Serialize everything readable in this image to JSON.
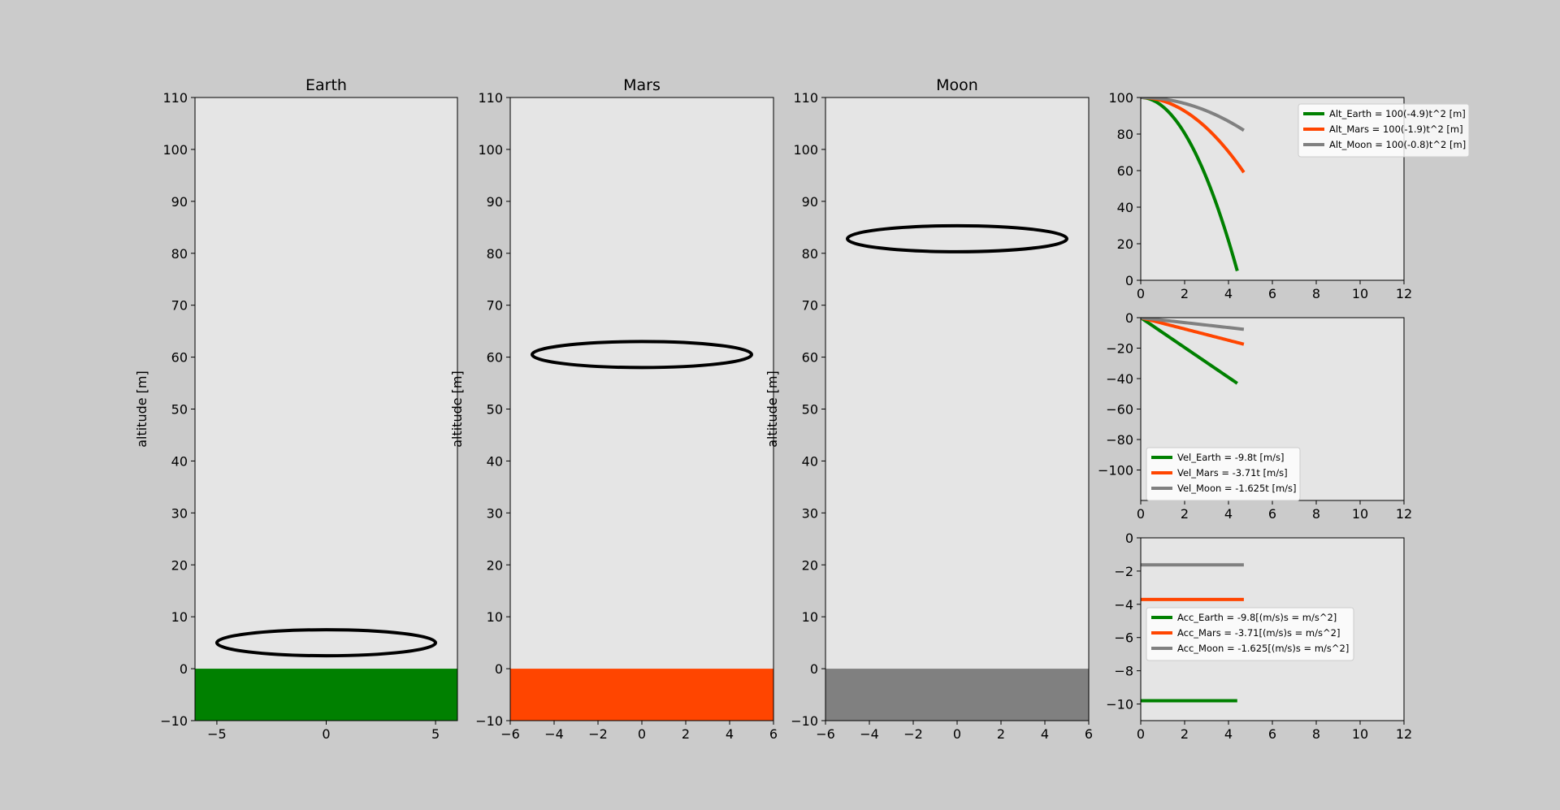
{
  "figure": {
    "background": "#cbcbcb",
    "axes_background": "#e5e5e5"
  },
  "chart_data": [
    {
      "type": "area",
      "title": "Earth",
      "xlabel": "",
      "ylabel": "altitude [m]",
      "xlim": [
        -6,
        6
      ],
      "ylim": [
        -10,
        110
      ],
      "xticks": [
        -5,
        0,
        5
      ],
      "yticks": [
        -10,
        0,
        10,
        20,
        30,
        40,
        50,
        60,
        70,
        80,
        90,
        100,
        110
      ],
      "grid": false,
      "ground": {
        "from": -10,
        "to": 0,
        "color": "#008000"
      },
      "ellipse": {
        "center": [
          0,
          5
        ],
        "width": 10,
        "height": 10,
        "color": "#000000"
      }
    },
    {
      "type": "area",
      "title": "Mars",
      "xlabel": "",
      "ylabel": "altitude [m]",
      "xlim": [
        -6,
        6
      ],
      "ylim": [
        -10,
        110
      ],
      "xticks": [
        -6,
        -4,
        -2,
        0,
        2,
        4,
        6
      ],
      "yticks": [
        -10,
        0,
        10,
        20,
        30,
        40,
        50,
        60,
        70,
        80,
        90,
        100,
        110
      ],
      "grid": false,
      "ground": {
        "from": -10,
        "to": 0,
        "color": "#ff4500"
      },
      "ellipse": {
        "center": [
          0,
          60.5
        ],
        "width": 10,
        "height": 10,
        "color": "#000000"
      }
    },
    {
      "type": "area",
      "title": "Moon",
      "xlabel": "",
      "ylabel": "altitude [m]",
      "xlim": [
        -6,
        6
      ],
      "ylim": [
        -10,
        110
      ],
      "xticks": [
        -6,
        -4,
        -2,
        0,
        2,
        4,
        6
      ],
      "yticks": [
        -10,
        0,
        10,
        20,
        30,
        40,
        50,
        60,
        70,
        80,
        90,
        100,
        110
      ],
      "grid": false,
      "ground": {
        "from": -10,
        "to": 0,
        "color": "#808080"
      },
      "ellipse": {
        "center": [
          0,
          82.8
        ],
        "width": 10,
        "height": 10,
        "color": "#000000"
      }
    },
    {
      "type": "line",
      "title": "",
      "xlim": [
        0,
        12
      ],
      "ylim": [
        0,
        100
      ],
      "xticks": [
        0,
        2,
        4,
        6,
        8,
        10,
        12
      ],
      "yticks": [
        0,
        20,
        40,
        60,
        80,
        100
      ],
      "grid": false,
      "legend": "top-right",
      "series": [
        {
          "name": "Alt_Earth = 100(-4.9)t^2 [m]",
          "color": "#008000",
          "t_end": 4.4,
          "coef": 4.9,
          "kind": "altitude"
        },
        {
          "name": "Alt_Mars = 100(-1.9)t^2 [m]",
          "color": "#ff4500",
          "t_end": 4.7,
          "coef": 1.855,
          "kind": "altitude"
        },
        {
          "name": "Alt_Moon = 100(-0.8)t^2 [m]",
          "color": "#808080",
          "t_end": 4.7,
          "coef": 0.8125,
          "kind": "altitude"
        }
      ]
    },
    {
      "type": "line",
      "title": "",
      "xlim": [
        0,
        12
      ],
      "ylim": [
        -120,
        0
      ],
      "xticks": [
        0,
        2,
        4,
        6,
        8,
        10,
        12
      ],
      "yticks": [
        -100,
        -80,
        -60,
        -40,
        -20,
        0
      ],
      "grid": false,
      "legend": "lower-left",
      "series": [
        {
          "name": "Vel_Earth = -9.8t [m/s]",
          "color": "#008000",
          "t_end": 4.4,
          "coef": 9.8,
          "kind": "velocity"
        },
        {
          "name": "Vel_Mars = -3.71t [m/s]",
          "color": "#ff4500",
          "t_end": 4.7,
          "coef": 3.71,
          "kind": "velocity"
        },
        {
          "name": "Vel_Moon = -1.625t [m/s]",
          "color": "#808080",
          "t_end": 4.7,
          "coef": 1.625,
          "kind": "velocity"
        }
      ]
    },
    {
      "type": "line",
      "title": "",
      "xlim": [
        0,
        12
      ],
      "ylim": [
        -11,
        0
      ],
      "xticks": [
        0,
        2,
        4,
        6,
        8,
        10,
        12
      ],
      "yticks": [
        -10,
        -8,
        -6,
        -4,
        -2,
        0
      ],
      "grid": false,
      "legend": "center-left",
      "series": [
        {
          "name": "Acc_Earth = -9.8[(m/s)s = m/s^2]",
          "color": "#008000",
          "t_end": 4.4,
          "coef": 9.8,
          "kind": "acceleration"
        },
        {
          "name": "Acc_Mars = -3.71[(m/s)s = m/s^2]",
          "color": "#ff4500",
          "t_end": 4.7,
          "coef": 3.71,
          "kind": "acceleration"
        },
        {
          "name": "Acc_Moon = -1.625[(m/s)s = m/s^2]",
          "color": "#808080",
          "t_end": 4.7,
          "coef": 1.625,
          "kind": "acceleration"
        }
      ]
    }
  ]
}
